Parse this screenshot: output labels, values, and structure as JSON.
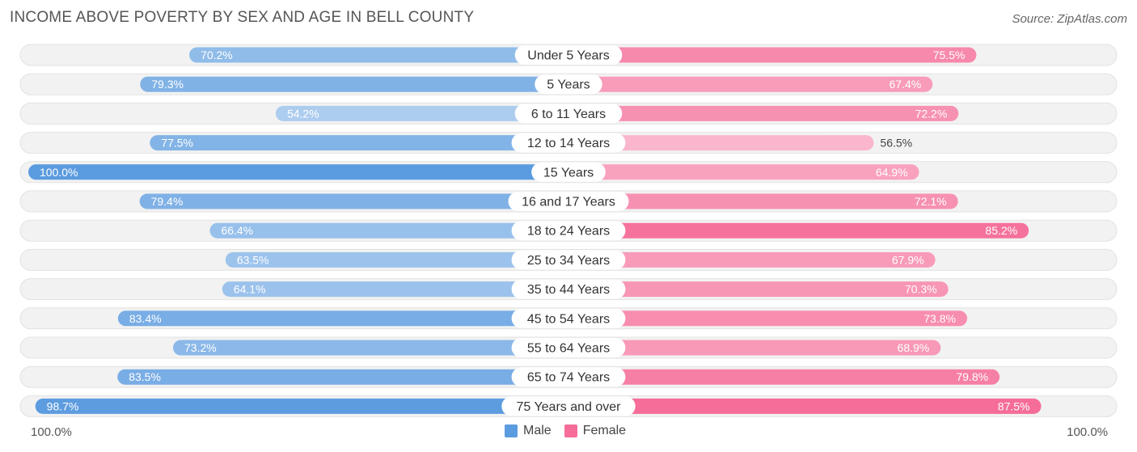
{
  "chart_data": {
    "type": "bar",
    "title": "INCOME ABOVE POVERTY BY SEX AND AGE IN BELL COUNTY",
    "source": "Source: ZipAtlas.com",
    "categories": [
      "Under 5 Years",
      "5 Years",
      "6 to 11 Years",
      "12 to 14 Years",
      "15 Years",
      "16 and 17 Years",
      "18 to 24 Years",
      "25 to 34 Years",
      "35 to 44 Years",
      "45 to 54 Years",
      "55 to 64 Years",
      "65 to 74 Years",
      "75 Years and over"
    ],
    "series": [
      {
        "name": "Male",
        "color": "#5b9bdf",
        "values": [
          70.2,
          79.3,
          54.2,
          77.5,
          100.0,
          79.4,
          66.4,
          63.5,
          64.1,
          83.4,
          73.2,
          83.5,
          98.7
        ]
      },
      {
        "name": "Female",
        "color": "#f56d98",
        "values": [
          75.5,
          67.4,
          72.2,
          56.5,
          64.9,
          72.1,
          85.2,
          67.9,
          70.3,
          73.8,
          68.9,
          79.8,
          87.5
        ]
      }
    ],
    "value_labels": {
      "Male": [
        "70.2%",
        "79.3%",
        "54.2%",
        "77.5%",
        "100.0%",
        "79.4%",
        "66.4%",
        "63.5%",
        "64.1%",
        "83.4%",
        "73.2%",
        "83.5%",
        "98.7%"
      ],
      "Female": [
        "75.5%",
        "67.4%",
        "72.2%",
        "56.5%",
        "64.9%",
        "72.1%",
        "85.2%",
        "67.9%",
        "70.3%",
        "73.8%",
        "68.9%",
        "79.8%",
        "87.5%"
      ]
    },
    "xlim": [
      0,
      100
    ],
    "axis_left_label": "100.0%",
    "axis_right_label": "100.0%",
    "legend": {
      "position": "bottom-center",
      "items": [
        "Male",
        "Female"
      ]
    }
  }
}
